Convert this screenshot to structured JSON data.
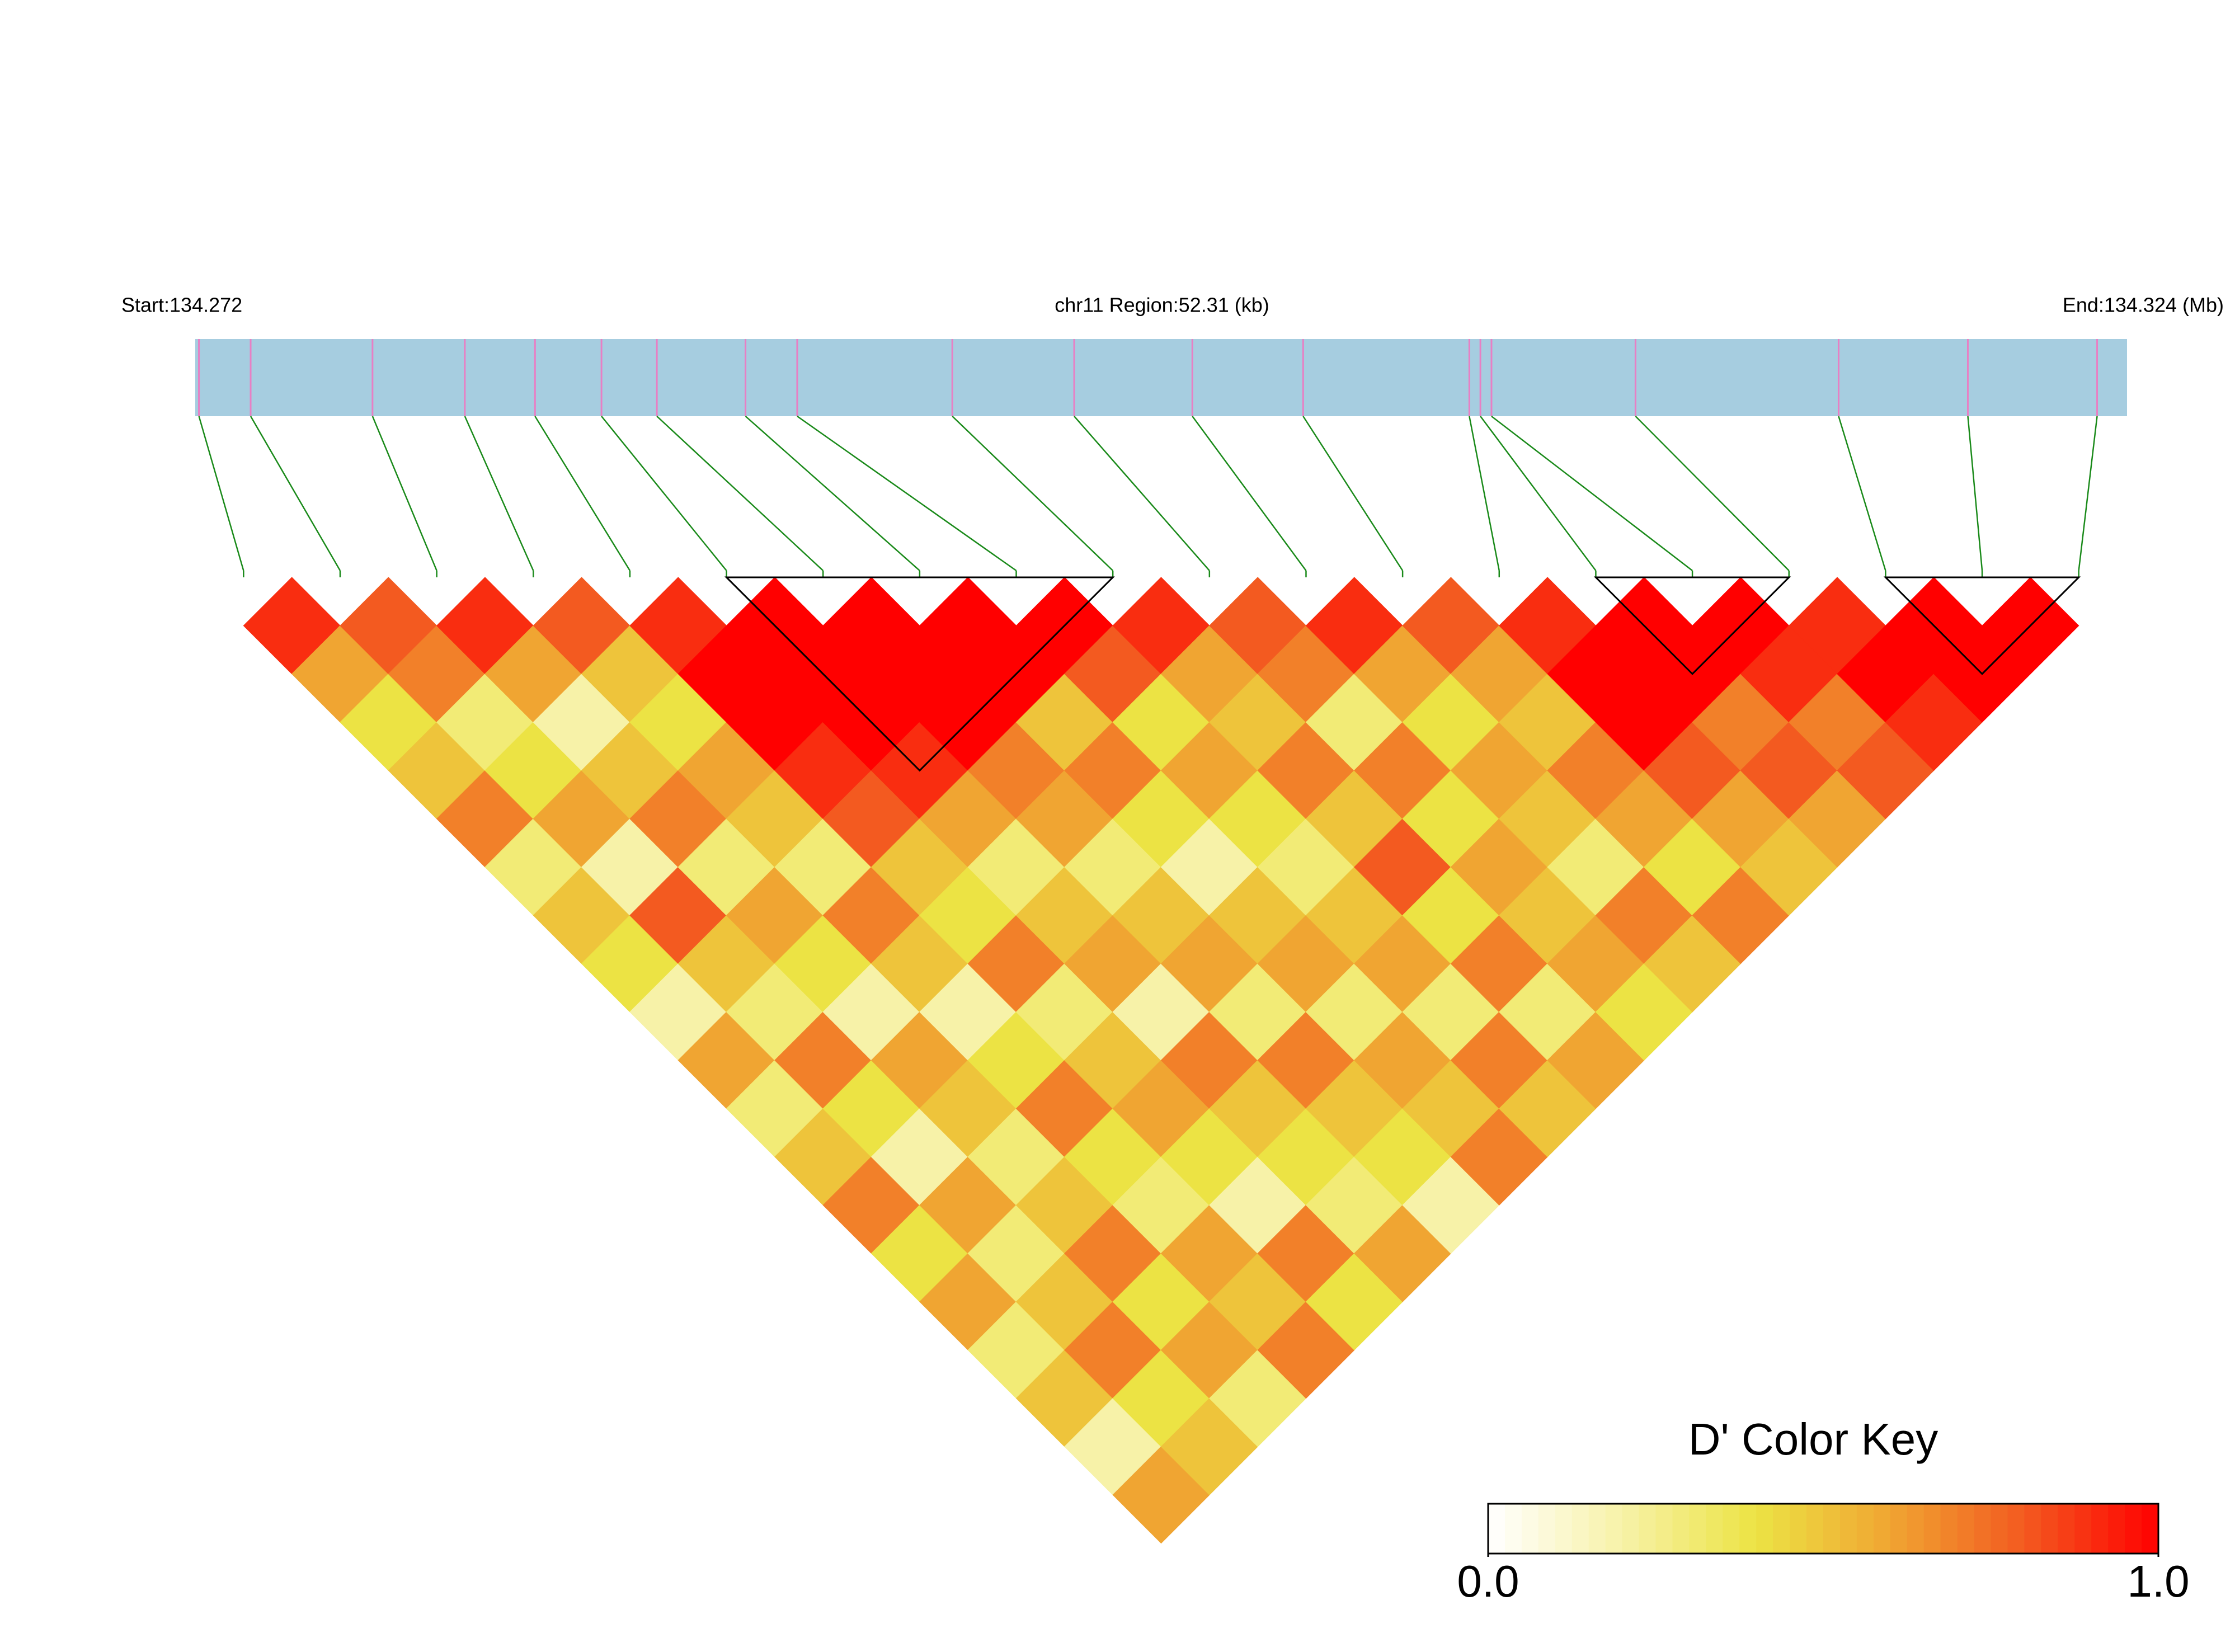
{
  "chart_data": {
    "type": "ld_heatmap",
    "start_label": "Start:134.272",
    "region_label": "chr11 Region:52.31 (kb)",
    "end_label": "End:134.324 (Mb)",
    "legend_title": "D' Color Key",
    "xlim": [
      134.272,
      134.32431
    ],
    "x": [
      134.2721,
      134.2735,
      134.2768,
      134.2793,
      134.2812,
      134.283,
      134.2845,
      134.2869,
      134.2883,
      134.2925,
      134.2958,
      134.299,
      134.302,
      134.3065,
      134.3068,
      134.3071,
      134.311,
      134.3165,
      134.32,
      134.3235
    ],
    "values": [
      [],
      [
        0.9
      ],
      [
        0.6,
        0.8
      ],
      [
        0.4,
        0.7,
        0.9
      ],
      [
        0.5,
        0.3,
        0.6,
        0.8
      ],
      [
        0.7,
        0.4,
        0.2,
        0.5,
        0.9
      ],
      [
        0.3,
        0.6,
        0.5,
        0.4,
        1,
        1
      ],
      [
        0.5,
        0.2,
        0.7,
        0.6,
        1,
        1,
        1
      ],
      [
        0.4,
        0.8,
        0.3,
        0.5,
        0.9,
        1,
        1,
        1
      ],
      [
        0.2,
        0.5,
        0.6,
        0.3,
        0.8,
        0.9,
        1,
        1,
        1
      ],
      [
        0.6,
        0.3,
        0.4,
        0.7,
        0.5,
        0.6,
        0.7,
        0.5,
        0.8,
        0.9
      ],
      [
        0.3,
        0.7,
        0.2,
        0.5,
        0.4,
        0.3,
        0.6,
        0.7,
        0.4,
        0.6,
        0.8
      ],
      [
        0.5,
        0.4,
        0.6,
        0.2,
        0.7,
        0.5,
        0.3,
        0.4,
        0.6,
        0.5,
        0.7,
        0.9
      ],
      [
        0.7,
        0.2,
        0.5,
        0.4,
        0.3,
        0.6,
        0.5,
        0.2,
        0.4,
        0.7,
        0.3,
        0.6,
        0.8
      ],
      [
        0.4,
        0.6,
        0.3,
        0.7,
        0.5,
        0.2,
        0.6,
        0.5,
        0.3,
        0.5,
        0.7,
        0.4,
        0.6,
        0.9
      ],
      [
        0.6,
        0.3,
        0.5,
        0.4,
        0.6,
        0.7,
        0.3,
        0.6,
        0.5,
        0.8,
        0.4,
        0.6,
        0.5,
        1,
        1
      ],
      [
        0.3,
        0.5,
        0.7,
        0.3,
        0.4,
        0.5,
        0.7,
        0.3,
        0.6,
        0.4,
        0.6,
        0.5,
        0.7,
        1,
        1,
        1
      ],
      [
        0.5,
        0.7,
        0.4,
        0.6,
        0.2,
        0.4,
        0.5,
        0.6,
        0.3,
        0.7,
        0.5,
        0.3,
        0.6,
        0.8,
        0.7,
        0.9,
        0.9
      ],
      [
        0.2,
        0.4,
        0.6,
        0.5,
        0.7,
        0.3,
        0.4,
        0.5,
        0.7,
        0.3,
        0.6,
        0.7,
        0.4,
        0.6,
        0.8,
        0.7,
        1,
        1
      ],
      [
        0.6,
        0.5,
        0.3,
        0.7,
        0.4,
        0.6,
        0.2,
        0.7,
        0.5,
        0.6,
        0.4,
        0.5,
        0.7,
        0.5,
        0.6,
        0.8,
        0.9,
        1,
        1
      ]
    ],
    "blocks": [
      [
        5,
        9
      ],
      [
        14,
        16
      ],
      [
        17,
        19
      ]
    ],
    "colorscale": [
      "#ffffff",
      "#f7f2a8",
      "#ece344",
      "#f0a532",
      "#f35a20",
      "#ff0000"
    ],
    "clim": [
      0,
      1
    ],
    "cticks": [
      {
        "value": 0,
        "label": "0.0"
      },
      {
        "value": 1,
        "label": "1.0"
      }
    ],
    "gene_bar_color": "#a6cde0",
    "tick_color": "#e87fc4",
    "connector_color": "#1a8a1a"
  }
}
